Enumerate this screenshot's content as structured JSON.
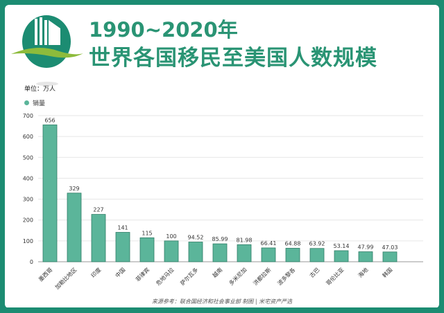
{
  "header": {
    "title_line1": "1990~2020年",
    "title_line2": "世界各国移民至美国人数规模"
  },
  "unit_label": "单位：万人",
  "source": "来源参考：联合国经济和社会事业部 制图 | 米宅资产严选",
  "colors": {
    "frame": "#1c8c72",
    "bar": "#5bb59a",
    "bar_stroke": "#2f7d66",
    "title": "#2a9474"
  },
  "chart_data": {
    "type": "bar",
    "title": "1990~2020年世界各国移民至美国人数规模",
    "ylabel": "单位：万人",
    "legend": [
      "销量"
    ],
    "legend_position": "top-left",
    "ylim": [
      0,
      700
    ],
    "yticks": [
      0,
      100,
      200,
      300,
      400,
      500,
      600,
      700
    ],
    "grid": true,
    "categories": [
      "墨西哥",
      "加勒比地区",
      "印度",
      "中国",
      "菲律宾",
      "危地马拉",
      "萨尔瓦多",
      "越南",
      "多米尼加",
      "洪都拉斯",
      "波多黎各",
      "古巴",
      "哥伦比亚",
      "海地",
      "韩国"
    ],
    "values": [
      656,
      329,
      227,
      141,
      115,
      100,
      94.52,
      85.99,
      81.98,
      66.41,
      64.88,
      63.92,
      53.14,
      47.99,
      47.03
    ]
  }
}
